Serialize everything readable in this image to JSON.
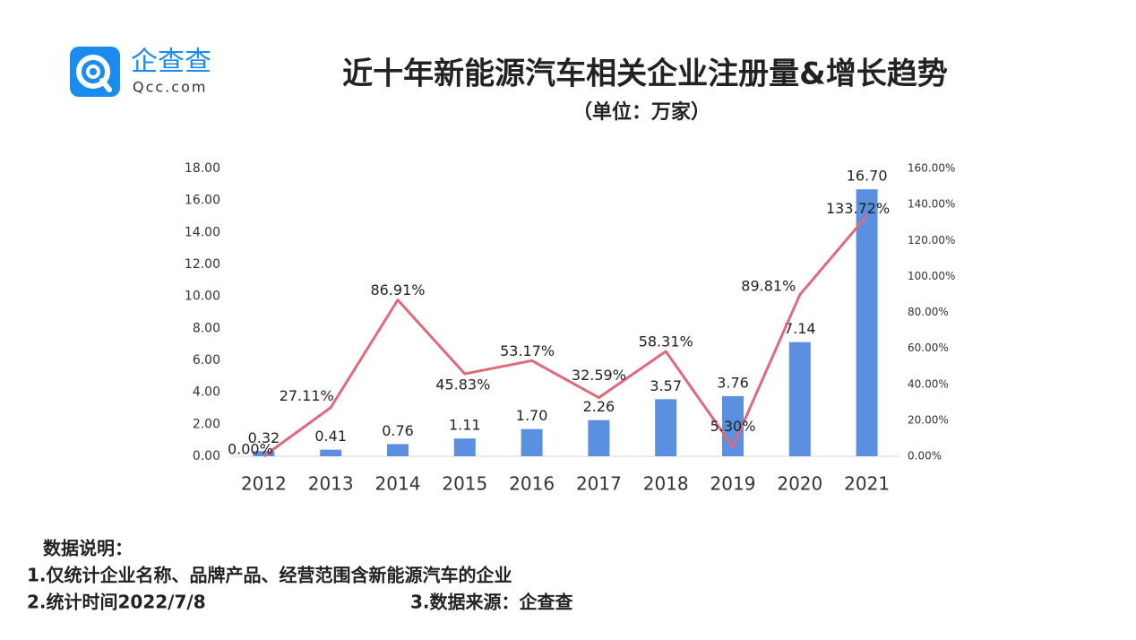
{
  "logo": {
    "name": "企查查",
    "domain": "Qcc.com"
  },
  "chart_data": {
    "type": "bar-line",
    "title": "近十年新能源汽车相关企业注册量&增长趋势",
    "subtitle": "（单位：万家）",
    "categories": [
      "2012",
      "2013",
      "2014",
      "2015",
      "2016",
      "2017",
      "2018",
      "2019",
      "2020",
      "2021"
    ],
    "series": [
      {
        "type": "bar",
        "color": "#5b8fe0",
        "values": [
          0.32,
          0.41,
          0.76,
          1.11,
          1.7,
          2.26,
          3.57,
          3.76,
          7.14,
          16.7
        ],
        "value_labels": [
          "0.32",
          "0.41",
          "0.76",
          "1.11",
          "1.70",
          "2.26",
          "3.57",
          "3.76",
          "7.14",
          "16.70"
        ]
      },
      {
        "type": "line",
        "axis": "y2",
        "color": "#e06a7c",
        "values": [
          0,
          27.11,
          86.91,
          45.83,
          53.17,
          32.59,
          58.31,
          5.3,
          89.81,
          133.72
        ],
        "value_labels": [
          "0.00%",
          "27.11%",
          "86.91%",
          "45.83%",
          "53.17%",
          "32.59%",
          "58.31%",
          "5.30%",
          "89.81%",
          "133.72%"
        ]
      }
    ],
    "ylim": [
      0,
      18
    ],
    "yticks": [
      {
        "value": 0,
        "label": "0.00"
      },
      {
        "value": 2,
        "label": "2.00"
      },
      {
        "value": 4,
        "label": "4.00"
      },
      {
        "value": 6,
        "label": "6.00"
      },
      {
        "value": 8,
        "label": "8.00"
      },
      {
        "value": 10,
        "label": "10.00"
      },
      {
        "value": 12,
        "label": "12.00"
      },
      {
        "value": 14,
        "label": "14.00"
      },
      {
        "value": 16,
        "label": "16.00"
      },
      {
        "value": 18,
        "label": "18.00"
      }
    ],
    "y2lim": [
      0,
      160
    ],
    "y2ticks": [
      {
        "value": 0,
        "label": "0.00%"
      },
      {
        "value": 20,
        "label": "20.00%"
      },
      {
        "value": 40,
        "label": "40.00%"
      },
      {
        "value": 60,
        "label": "60.00%"
      },
      {
        "value": 80,
        "label": "80.00%"
      },
      {
        "value": 100,
        "label": "100.00%"
      },
      {
        "value": 120,
        "label": "120.00%"
      },
      {
        "value": 140,
        "label": "140.00%"
      },
      {
        "value": 160,
        "label": "160.00%"
      }
    ]
  },
  "notes": {
    "heading": "数据说明：",
    "items": [
      "1.仅统计企业名称、品牌产品、经营范围含新能源汽车的企业",
      "2.统计时间2022/7/8",
      "3.数据来源：企查查"
    ]
  }
}
